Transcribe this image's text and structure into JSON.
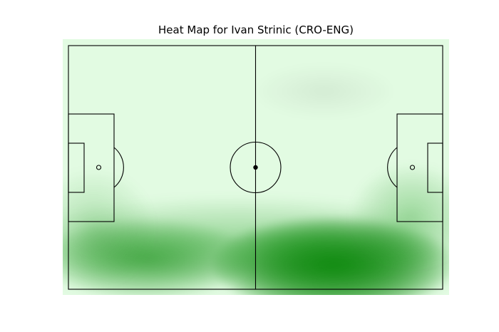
{
  "colors": {
    "background": "#ffffff",
    "pitch_base": "#e2fbe2",
    "density_peak": "#008000",
    "lines": "#000000"
  },
  "chart_data": {
    "type": "heatmap",
    "title": "Heat Map for Ivan Strinic (CRO-ENG)",
    "xlabel": "",
    "ylabel": "",
    "grid": false,
    "legend": "none",
    "pitch": {
      "length": 120,
      "width": 80,
      "orientation": "horizontal"
    },
    "density_hotspots": [
      {
        "x": 85,
        "y": 72,
        "sx": 16,
        "sy": 6.5,
        "weight": 1.0
      },
      {
        "x": 25,
        "y": 70,
        "sx": 14,
        "sy": 5.5,
        "weight": 0.42
      },
      {
        "x": 55,
        "y": 64,
        "sx": 30,
        "sy": 6,
        "weight": 0.18
      },
      {
        "x": 8,
        "y": 60,
        "sx": 8,
        "sy": 8,
        "weight": 0.12
      },
      {
        "x": 110,
        "y": 56,
        "sx": 8,
        "sy": 7,
        "weight": 0.16
      },
      {
        "x": 82,
        "y": 15,
        "sx": 9,
        "sy": 3.5,
        "weight": 0.05
      }
    ]
  }
}
